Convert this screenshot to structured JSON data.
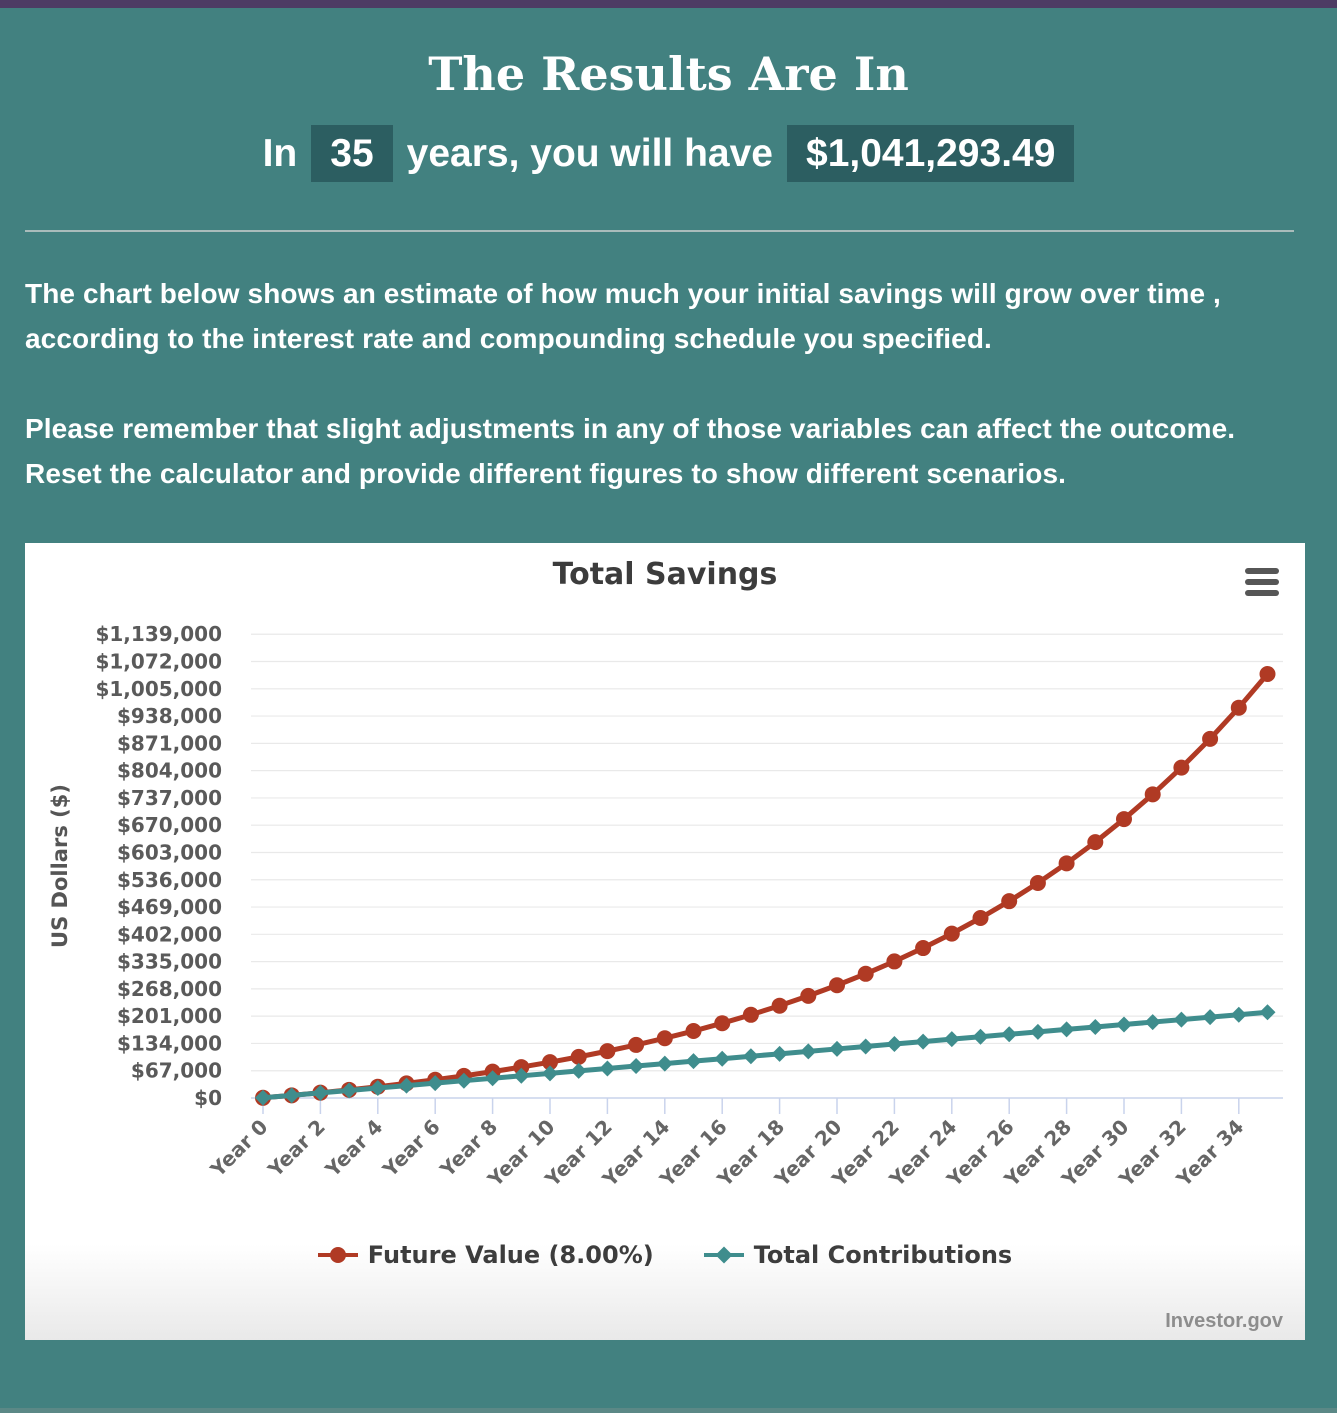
{
  "header": {
    "title": "The Results Are In",
    "result": {
      "prefix": "In",
      "years": "35",
      "middle": "years, you will have",
      "amount": "$1,041,293.49"
    },
    "paragraph1": "The chart below shows an estimate of how much your initial savings will grow over time , according to the interest rate and compounding schedule you specified.",
    "paragraph2": "Please remember that slight adjustments in any of those variables can affect the outcome. Reset the calculator and provide different figures to show different scenarios."
  },
  "chart": {
    "title": "Total Savings",
    "watermark": "Investor.gov"
  },
  "colors": {
    "page_background": "#428180",
    "top_bar": "#4d3c64",
    "highlight_box": "#2c5e61",
    "future_value_series": "#b03a24",
    "contributions_series": "#3f8d8d",
    "gridline": "#e9e9e9",
    "axis_and_ticks": "#c9d3ec",
    "chart_text": "#5a5a5a"
  },
  "chart_data": {
    "type": "line",
    "title": "Total Savings",
    "xlabel": "",
    "ylabel": "US Dollars ($)",
    "ylim": [
      0,
      1139000
    ],
    "grid": "horizontal",
    "legend_position": "bottom",
    "x": [
      0,
      1,
      2,
      3,
      4,
      5,
      6,
      7,
      8,
      9,
      10,
      11,
      12,
      13,
      14,
      15,
      16,
      17,
      18,
      19,
      20,
      21,
      22,
      23,
      24,
      25,
      26,
      27,
      28,
      29,
      30,
      31,
      32,
      33,
      34,
      35
    ],
    "x_tick_years": [
      0,
      2,
      4,
      6,
      8,
      10,
      12,
      14,
      16,
      18,
      20,
      22,
      24,
      26,
      28,
      30,
      32,
      34
    ],
    "x_tick_labels": [
      "Year 0",
      "Year 2",
      "Year 4",
      "Year 6",
      "Year 8",
      "Year 10",
      "Year 12",
      "Year 14",
      "Year 16",
      "Year 18",
      "Year 20",
      "Year 22",
      "Year 24",
      "Year 26",
      "Year 28",
      "Year 30",
      "Year 32",
      "Year 34"
    ],
    "y_tick_values": [
      0,
      67000,
      134000,
      201000,
      268000,
      335000,
      402000,
      469000,
      536000,
      603000,
      670000,
      737000,
      804000,
      871000,
      938000,
      1005000,
      1072000,
      1139000
    ],
    "y_tick_labels": [
      "$0",
      "$67,000",
      "$134,000",
      "$201,000",
      "$268,000",
      "$335,000",
      "$402,000",
      "$469,000",
      "$536,000",
      "$603,000",
      "$670,000",
      "$737,000",
      "$804,000",
      "$871,000",
      "$938,000",
      "$1,005,000",
      "$1,072,000",
      "$1,139,000"
    ],
    "series": [
      {
        "name": "Future Value (8.00%)",
        "color": "#b03a24",
        "marker": "circle",
        "values": [
          500.0,
          6540.0,
          13063.2,
          20108.26,
          27716.92,
          35934.27,
          44809.01,
          54393.73,
          64745.23,
          75924.85,
          87998.84,
          101038.74,
          115121.84,
          130331.59,
          146758.12,
          164498.77,
          183658.67,
          204351.36,
          226699.47,
          250835.43,
          276902.27,
          305054.45,
          335458.8,
          368295.51,
          403759.14,
          442059.88,
          483424.67,
          528098.64,
          576346.53,
          628454.26,
          685030.6,
          745833.04,
          811449.77,
          882041.75,
          958605.09,
          1041293.49
        ]
      },
      {
        "name": "Total Contributions",
        "color": "#3f8d8d",
        "marker": "diamond",
        "values": [
          500,
          6500,
          12500,
          18500,
          24500,
          30500,
          36500,
          42500,
          48500,
          54500,
          60500,
          66500,
          72500,
          78500,
          84500,
          90500,
          96500,
          102500,
          108500,
          114500,
          120500,
          126500,
          132500,
          138500,
          144500,
          150500,
          156500,
          162500,
          168500,
          174500,
          180500,
          186500,
          192500,
          198500,
          204500,
          210500
        ]
      }
    ]
  }
}
